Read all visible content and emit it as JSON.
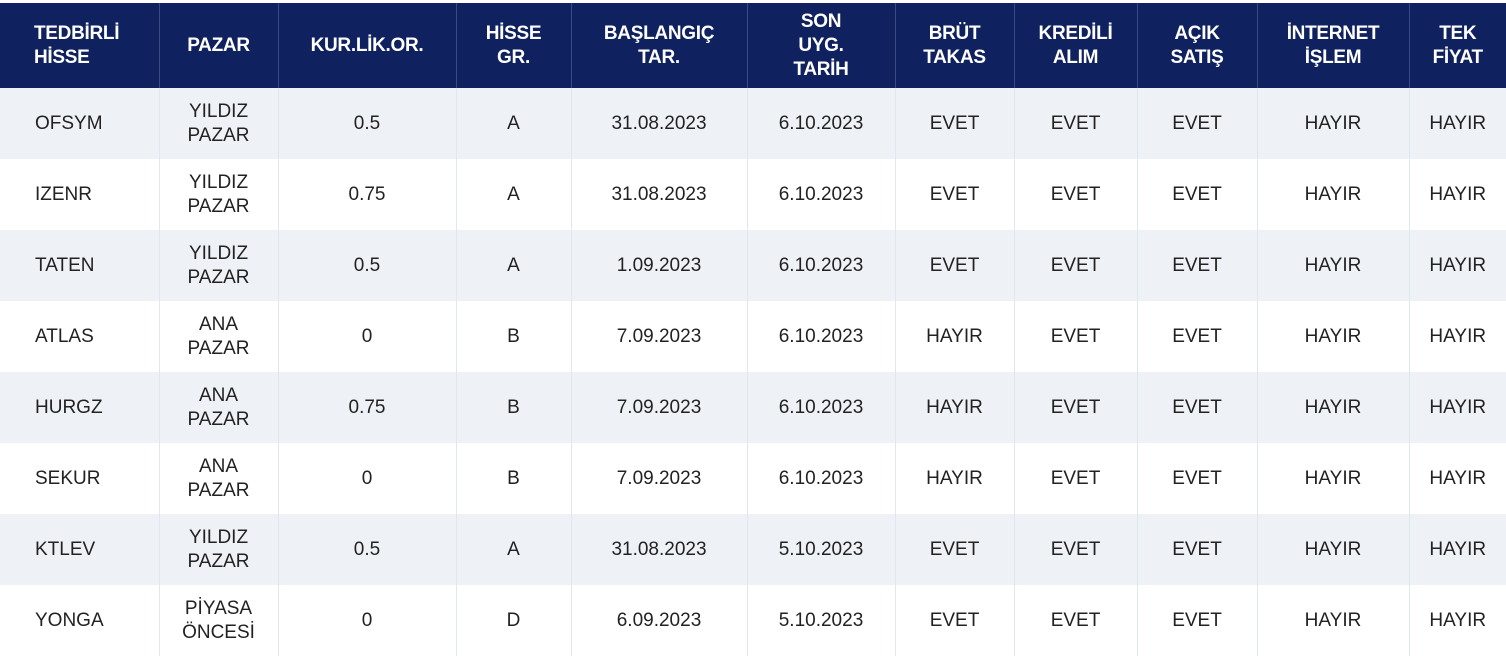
{
  "columns": [
    "TEDBİRLİ HİSSE",
    "PAZAR",
    "KUR.LİK.OR.",
    "HİSSE GR.",
    "BAŞLANGIÇ TAR.",
    "SON UYG. TARİH",
    "BRÜT TAKAS",
    "KREDİLİ ALIM",
    "AÇIK SATIŞ",
    "İNTERNET İŞLEM",
    "TEK FİYAT"
  ],
  "rows": [
    [
      "OFSYM",
      "YILDIZ PAZAR",
      "0.5",
      "A",
      "31.08.2023",
      "6.10.2023",
      "EVET",
      "EVET",
      "EVET",
      "HAYIR",
      "HAYIR"
    ],
    [
      "IZENR",
      "YILDIZ PAZAR",
      "0.75",
      "A",
      "31.08.2023",
      "6.10.2023",
      "EVET",
      "EVET",
      "EVET",
      "HAYIR",
      "HAYIR"
    ],
    [
      "TATEN",
      "YILDIZ PAZAR",
      "0.5",
      "A",
      "1.09.2023",
      "6.10.2023",
      "EVET",
      "EVET",
      "EVET",
      "HAYIR",
      "HAYIR"
    ],
    [
      "ATLAS",
      "ANA PAZAR",
      "0",
      "B",
      "7.09.2023",
      "6.10.2023",
      "HAYIR",
      "EVET",
      "EVET",
      "HAYIR",
      "HAYIR"
    ],
    [
      "HURGZ",
      "ANA PAZAR",
      "0.75",
      "B",
      "7.09.2023",
      "6.10.2023",
      "HAYIR",
      "EVET",
      "EVET",
      "HAYIR",
      "HAYIR"
    ],
    [
      "SEKUR",
      "ANA PAZAR",
      "0",
      "B",
      "7.09.2023",
      "6.10.2023",
      "HAYIR",
      "EVET",
      "EVET",
      "HAYIR",
      "HAYIR"
    ],
    [
      "KTLEV",
      "YILDIZ PAZAR",
      "0.5",
      "A",
      "31.08.2023",
      "5.10.2023",
      "EVET",
      "EVET",
      "EVET",
      "HAYIR",
      "HAYIR"
    ],
    [
      "YONGA",
      "PİYASA ÖNCESİ",
      "0",
      "D",
      "6.09.2023",
      "5.10.2023",
      "EVET",
      "EVET",
      "EVET",
      "HAYIR",
      "HAYIR"
    ]
  ],
  "colors": {
    "header_bg": "#10215f",
    "header_text": "#ffffff",
    "row_shaded": "#eef2f7",
    "row_plain": "#ffffff"
  }
}
